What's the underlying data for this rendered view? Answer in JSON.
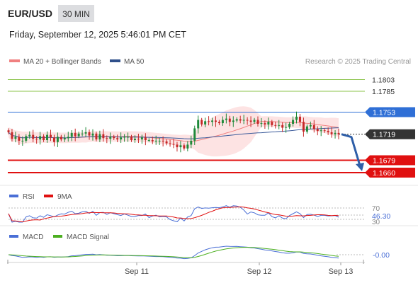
{
  "header": {
    "symbol": "EUR/USD",
    "interval": "30 MIN",
    "datetime": "Friday, September 12, 2025 5:46:01 PM CET"
  },
  "legend": {
    "ma20_bb": "MA 20 + Bollinger Bands",
    "ma50": "MA 50",
    "credit": "Research © 2025 Trading Central"
  },
  "levels": [
    {
      "label": "1.1803",
      "value": 1.1803,
      "color": "#8bc34a",
      "kind": "resistance"
    },
    {
      "label": "1.1785",
      "value": 1.1785,
      "color": "#8bc34a",
      "kind": "resistance"
    },
    {
      "label": "1.1753",
      "value": 1.1753,
      "color": "#2f6fd6",
      "kind": "pivot"
    },
    {
      "label": "1.1719",
      "value": 1.1719,
      "color": "#333333",
      "kind": "last-price"
    },
    {
      "label": "1.1679",
      "value": 1.1679,
      "color": "#e01010",
      "kind": "support"
    },
    {
      "label": "1.1660",
      "value": 1.166,
      "color": "#e01010",
      "kind": "support"
    }
  ],
  "rsi": {
    "label": "RSI",
    "ma_label": "9MA",
    "levels": [
      "70",
      "30"
    ],
    "value": "46.30",
    "colors": {
      "rsi": "#4a6fd6",
      "ma": "#e01010"
    }
  },
  "macd": {
    "label": "MACD",
    "signal_label": "MACD Signal",
    "value": "-0.00",
    "colors": {
      "macd": "#4a6fd6",
      "signal": "#4caf20"
    }
  },
  "xaxis": {
    "ticks": [
      "Sep 11",
      "Sep 12",
      "Sep 13"
    ]
  },
  "chart_data": {
    "type": "candlestick",
    "interval": "30 MIN",
    "ylim": [
      1.1648,
      1.1822
    ],
    "forecast": {
      "from": 1.1719,
      "to": 1.166,
      "direction": "down",
      "color": "#2f5fa8"
    },
    "close": [
      1.1722,
      1.1712,
      1.1715,
      1.1709,
      1.1709,
      1.1716,
      1.1718,
      1.1712,
      1.1711,
      1.1716,
      1.171,
      1.1718,
      1.1714,
      1.1707,
      1.1715,
      1.1711,
      1.1713,
      1.1715,
      1.1721,
      1.1716,
      1.172,
      1.172,
      1.1722,
      1.1717,
      1.172,
      1.1711,
      1.1719,
      1.1713,
      1.1712,
      1.1715,
      1.1713,
      1.1711,
      1.1714,
      1.1715,
      1.1715,
      1.171,
      1.1712,
      1.1711,
      1.1714,
      1.171,
      1.171,
      1.1708,
      1.1709,
      1.1709,
      1.1708,
      1.1705,
      1.1704,
      1.1703,
      1.1699,
      1.1702,
      1.1697,
      1.1703,
      1.1709,
      1.1728,
      1.1741,
      1.1734,
      1.1739,
      1.1738,
      1.174,
      1.1738,
      1.1736,
      1.1741,
      1.1743,
      1.1738,
      1.174,
      1.1742,
      1.174,
      1.1741,
      1.174,
      1.1738,
      1.1741,
      1.1735,
      1.1736,
      1.1734,
      1.1738,
      1.1733,
      1.1732,
      1.1733,
      1.1729,
      1.173,
      1.1735,
      1.1741,
      1.1746,
      1.1738,
      1.1723,
      1.1731,
      1.1733,
      1.1727,
      1.1724,
      1.1725,
      1.1724,
      1.1722,
      1.1719,
      1.1721,
      1.1719
    ]
  }
}
